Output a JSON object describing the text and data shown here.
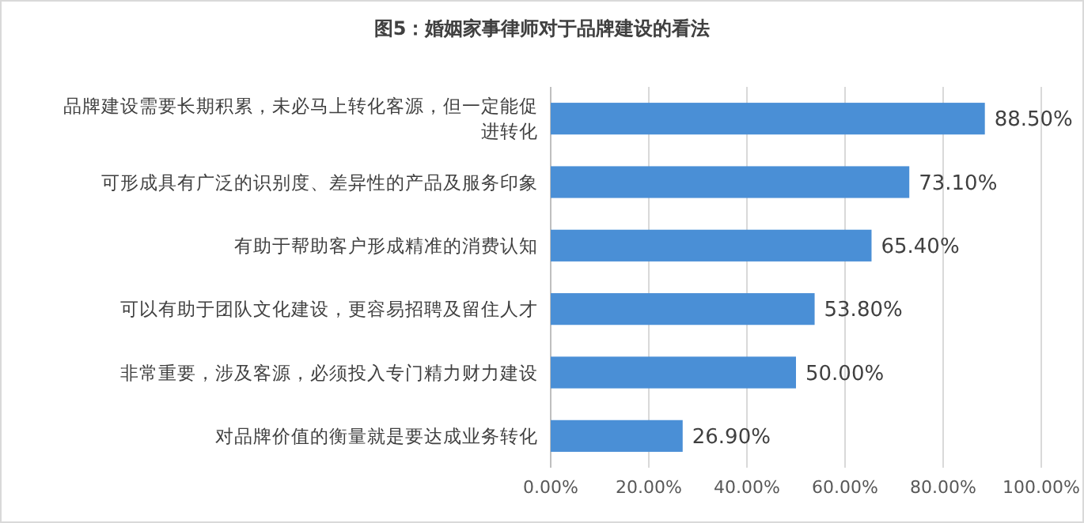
{
  "chart_data": {
    "type": "bar",
    "orientation": "horizontal",
    "title": "图5：婚姻家事律师对于品牌建设的看法",
    "categories": [
      "品牌建设需要长期积累，未必马上转化客源，但一定能促进转化",
      "可形成具有广泛的识别度、差异性的产品及服务印象",
      "有助于帮助客户形成精准的消费认知",
      "可以有助于团队文化建设，更容易招聘及留住人才",
      "非常重要，涉及客源，必须投入专门精力财力建设",
      "对品牌价值的衡量就是要达成业务转化"
    ],
    "values": [
      88.5,
      73.1,
      65.4,
      53.8,
      50.0,
      26.9
    ],
    "value_labels": [
      "88.50%",
      "73.10%",
      "65.40%",
      "53.80%",
      "50.00%",
      "26.90%"
    ],
    "color": "#4a8fd6",
    "xlim": [
      0,
      100
    ],
    "xticks": [
      {
        "value": 0,
        "label": "0.00%"
      },
      {
        "value": 20,
        "label": "20.00%"
      },
      {
        "value": 40,
        "label": "40.00%"
      },
      {
        "value": 60,
        "label": "60.00%"
      },
      {
        "value": 80,
        "label": "80.00%"
      },
      {
        "value": 100,
        "label": "100.00%"
      }
    ],
    "grid": "x"
  }
}
